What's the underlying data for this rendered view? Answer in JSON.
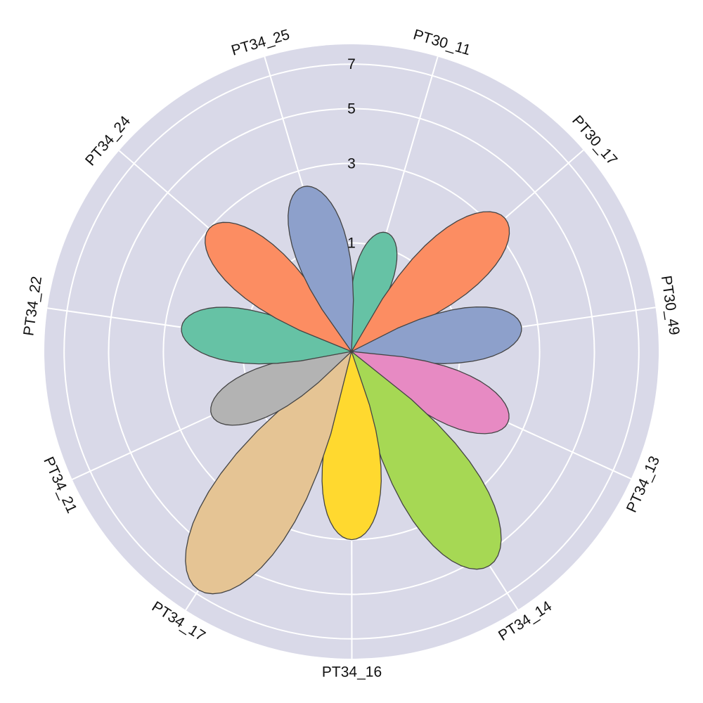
{
  "chart_data": {
    "type": "polar-petal",
    "categories": [
      "PT30_11",
      "PT30_17",
      "PT30_49",
      "PT34_13",
      "PT34_14",
      "PT34_16",
      "PT34_17",
      "PT34_21",
      "PT34_22",
      "PT34_24",
      "PT34_25"
    ],
    "values": [
      1.3,
      3.5,
      2.5,
      2.5,
      5.5,
      3.0,
      6.8,
      2.0,
      2.5,
      3.0,
      2.5
    ],
    "colors": [
      "#66c2a5",
      "#fc8d62",
      "#8da0cb",
      "#e78ac3",
      "#a6d854",
      "#ffd92f",
      "#e5c494",
      "#b3b3b3",
      "#66c2a5",
      "#fc8d62",
      "#8da0cb"
    ],
    "radial_ticks": [
      "1",
      "3",
      "5",
      "7"
    ],
    "radial_tick_values": [
      1,
      3,
      5,
      7
    ],
    "radial_range": [
      0,
      8
    ],
    "radial_scale": "sqrt",
    "grid": true,
    "background_color": "#d9d9e8",
    "petal_outline_color": "#444444"
  }
}
